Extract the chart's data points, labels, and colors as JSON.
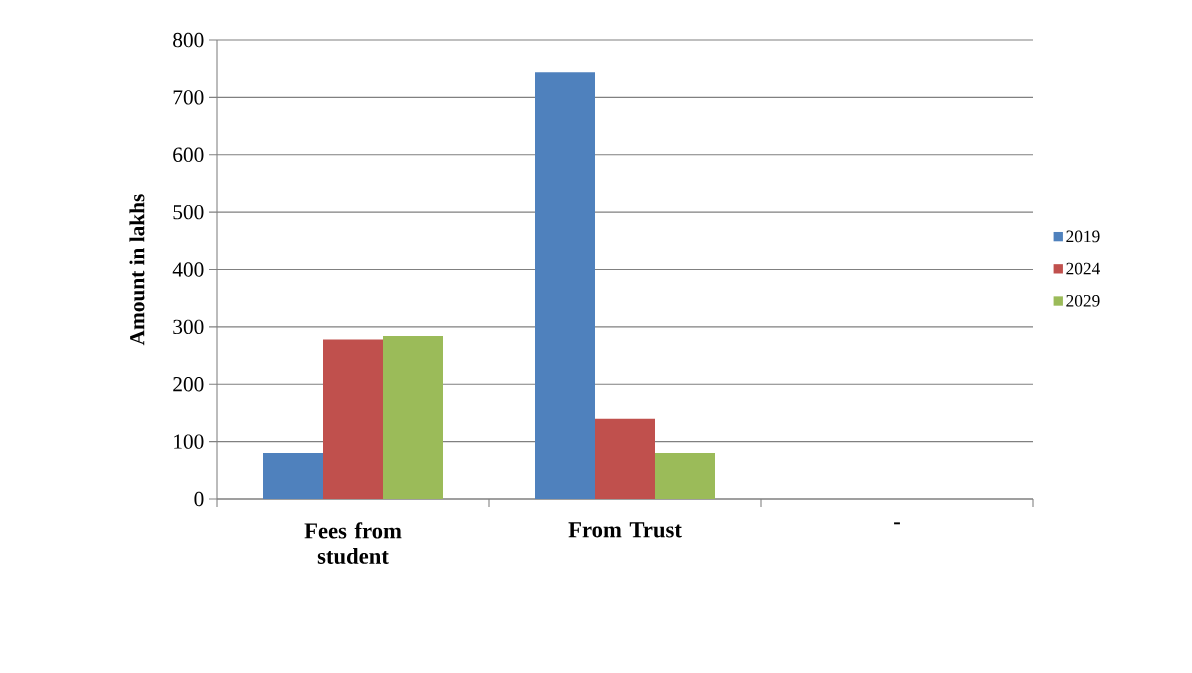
{
  "chart_data": {
    "type": "bar",
    "ylabel": "Amount in lakhs",
    "categories": [
      "Fees from student",
      "From Trust",
      "-"
    ],
    "series": [
      {
        "name": "2019",
        "color": "#4f81bd",
        "values": [
          80,
          744,
          null
        ]
      },
      {
        "name": "2024",
        "color": "#c0504d",
        "values": [
          278,
          140,
          null
        ]
      },
      {
        "name": "2029",
        "color": "#9bbb59",
        "values": [
          284,
          80,
          null
        ]
      }
    ],
    "ylim": [
      0,
      800
    ],
    "yticks": [
      0,
      100,
      200,
      300,
      400,
      500,
      600,
      700,
      800
    ],
    "grid": "y",
    "legend": "right"
  }
}
